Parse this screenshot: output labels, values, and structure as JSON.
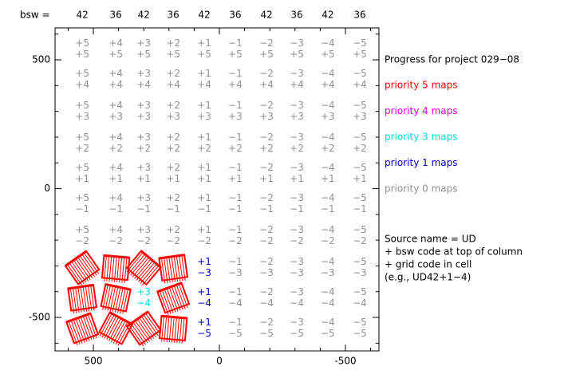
{
  "chart_data": {
    "type": "cellmap",
    "header_label": "bsw =",
    "bsw": [
      "42",
      "36",
      "42",
      "36",
      "42",
      "36",
      "42",
      "36",
      "42",
      "36"
    ],
    "column_codes": [
      "+5",
      "+4",
      "+3",
      "+2",
      "+1",
      "−1",
      "−2",
      "−3",
      "−4",
      "−5"
    ],
    "row_codes": [
      "+5",
      "+4",
      "+3",
      "+2",
      "+1",
      "−1",
      "−2",
      "−3",
      "−4",
      "−5"
    ],
    "x": [
      544,
      411,
      300,
      183,
      60,
      -63,
      -187,
      -307,
      -430,
      -557
    ],
    "y": [
      542,
      424,
      300,
      176,
      59,
      -59,
      -183,
      -307,
      -424,
      -542
    ],
    "priority": [
      [
        0,
        0,
        0,
        0,
        0,
        0,
        0,
        0,
        0,
        0
      ],
      [
        0,
        0,
        0,
        0,
        0,
        0,
        0,
        0,
        0,
        0
      ],
      [
        0,
        0,
        0,
        0,
        0,
        0,
        0,
        0,
        0,
        0
      ],
      [
        0,
        0,
        0,
        0,
        0,
        0,
        0,
        0,
        0,
        0
      ],
      [
        0,
        0,
        0,
        0,
        0,
        0,
        0,
        0,
        0,
        0
      ],
      [
        0,
        0,
        0,
        0,
        0,
        0,
        0,
        0,
        0,
        0
      ],
      [
        0,
        0,
        0,
        0,
        0,
        0,
        0,
        0,
        0,
        0
      ],
      [
        5,
        5,
        5,
        5,
        1,
        0,
        0,
        0,
        0,
        0
      ],
      [
        5,
        5,
        3,
        5,
        1,
        0,
        0,
        0,
        0,
        0
      ],
      [
        5,
        5,
        5,
        5,
        1,
        0,
        0,
        0,
        0,
        0
      ]
    ],
    "xlim": [
      652,
      -633
    ],
    "ylim": [
      -630,
      624
    ],
    "xticks": [
      500,
      0,
      -500
    ],
    "yticks": [
      500,
      0,
      -500
    ],
    "xminor": [
      600,
      400,
      300,
      200,
      100,
      -100,
      -200,
      -300,
      -400,
      -600
    ],
    "yminor": [
      600,
      400,
      300,
      200,
      100,
      -100,
      -200,
      -300,
      -400,
      -600
    ],
    "title": "Progress for project 029−08",
    "legend": [
      {
        "label": "priority 5 maps",
        "priority": 5,
        "color": "#ff0000"
      },
      {
        "label": "priority 4 maps",
        "priority": 4,
        "color": "#e000e0"
      },
      {
        "label": "priority 3 maps",
        "priority": 3,
        "color": "#00e0e0"
      },
      {
        "label": "priority 1 maps",
        "priority": 1,
        "color": "#0000c8"
      },
      {
        "label": "priority 0 maps",
        "priority": 0,
        "color": "#909090"
      }
    ],
    "notes": [
      "Source name = UD",
      " + bsw code at top of column",
      " + grid code in cell",
      "(e.g., UD42+1−4)"
    ]
  }
}
